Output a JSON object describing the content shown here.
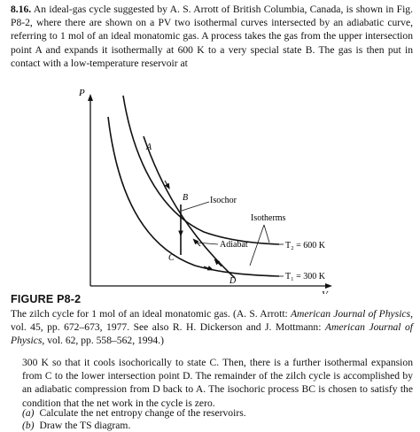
{
  "problem": {
    "number": "8.16.",
    "text": "An ideal-gas cycle suggested by A. S. Arrott of British Columbia, Canada, is shown in Fig. P8-2, where there are shown on a PV two isothermal curves intersected by an adiabatic curve, referring to 1 mol of an ideal monatomic gas. A process takes the gas from the upper intersection point A and expands it isothermally at 600 K to a very special state B. The gas is then put in contact with a low-temperature reservoir at"
  },
  "figure": {
    "axis_p": "P",
    "axis_v": "V",
    "point_a": "A",
    "point_b": "B",
    "point_c": "C",
    "point_d": "D",
    "label_isochor": "Isochor",
    "label_isotherms": "Isotherms",
    "label_adiabat": "Adiabat",
    "label_t2": "T₂ = 600 K",
    "label_t1": "T₁ = 300 K"
  },
  "caption": {
    "label": "FIGURE P8-2",
    "part1": "The zilch cycle for 1 mol of an ideal monatomic gas. (A. S. Arrott: ",
    "journal1": "American Journal of Physics",
    "part2": ", vol. 45, pp. 672–673, 1977. See also R. H. Dickerson and J. Mottmann: ",
    "journal2": "American Journal of Physics",
    "part3": ", vol. 62, pp. 558–562, 1994.)"
  },
  "continuation": "300 K so that it cools isochorically to state C. Then, there is a further isothermal expansion from C to the lower intersection point D. The remainder of the zilch cycle is accomplished by an adiabatic compression from D back to A. The isochoric process BC is chosen to satisfy the condition that the net work in the cycle is zero.",
  "questions": [
    {
      "label": "(a)",
      "text": "Calculate the net entropy change of the reservoirs."
    },
    {
      "label": "(b)",
      "text": "Draw the TS diagram."
    }
  ]
}
